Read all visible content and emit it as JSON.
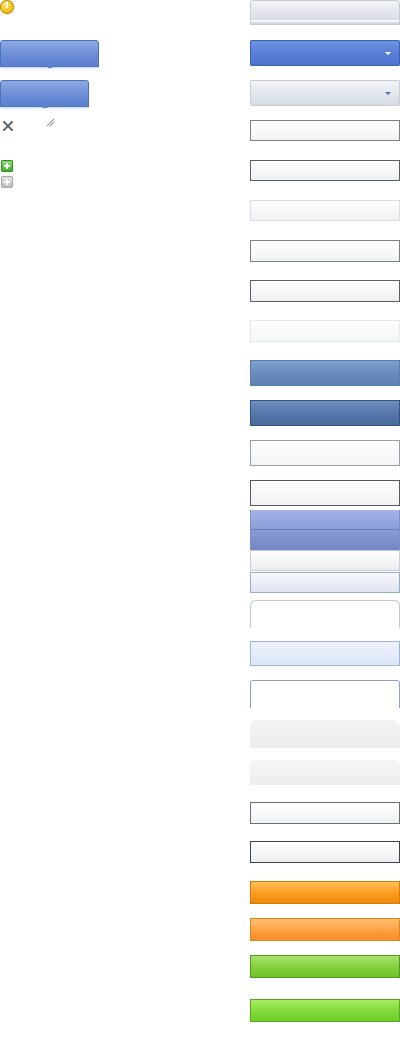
{
  "icons": {
    "info": "info-icon",
    "close": "close-icon",
    "resize": "resize-grip-icon",
    "add": "add-icon",
    "add_disabled": "add-disabled-icon"
  },
  "colors": {
    "blue_accent": "#5a80d6",
    "steel_blue": "#6a8dc0",
    "orange": "#fb9a1e",
    "green": "#84cf3c",
    "icon_gray": "#5b6470"
  }
}
